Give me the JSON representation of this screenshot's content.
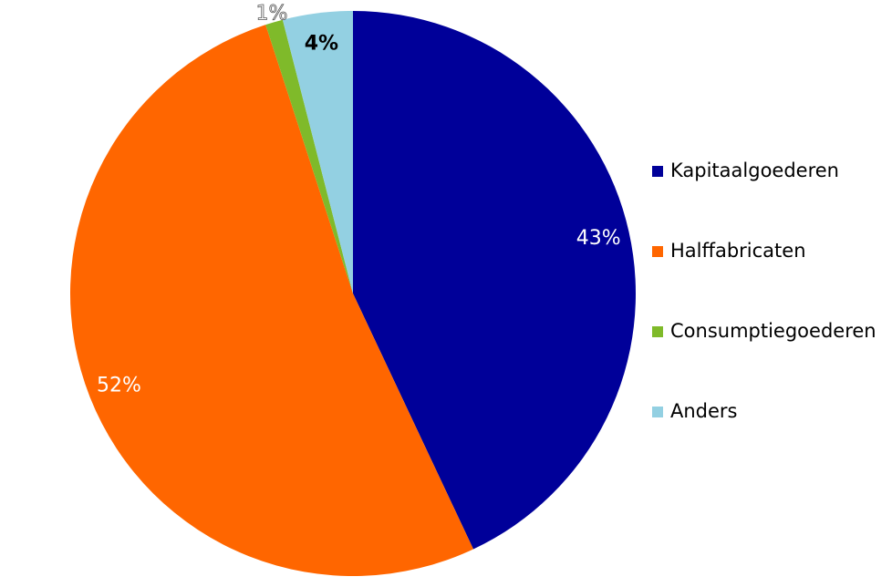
{
  "chart_data": {
    "type": "pie",
    "categories": [
      "Kapitaalgoederen",
      "Halffabricaten",
      "Consumptiegoederen",
      "Anders"
    ],
    "values": [
      43,
      52,
      1,
      4
    ],
    "value_labels": [
      "43%",
      "52%",
      "1%",
      "4%"
    ],
    "colors": [
      "#000099",
      "#ff6600",
      "#7fba2a",
      "#93d0e2"
    ],
    "legend": "right"
  }
}
